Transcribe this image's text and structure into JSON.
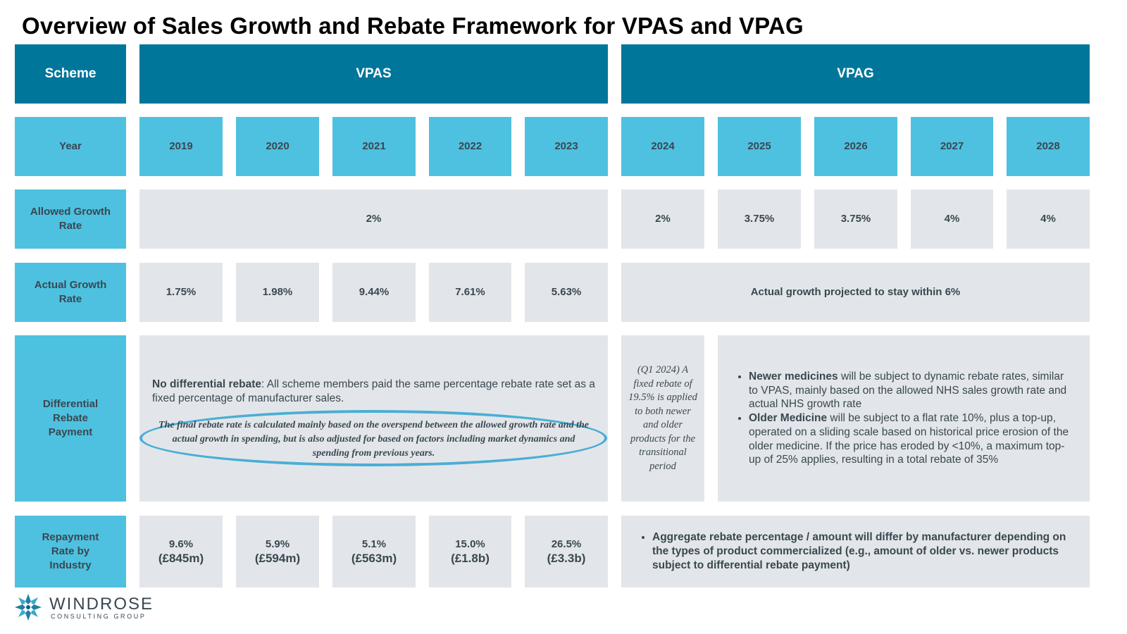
{
  "title": "Overview of Sales Growth and Rebate Framework for VPAS and VPAG",
  "header": {
    "scheme": "Scheme",
    "vpas": "VPAS",
    "vpag": "VPAG"
  },
  "rows": {
    "year": {
      "label": "Year",
      "values": [
        "2019",
        "2020",
        "2021",
        "2022",
        "2023",
        "2024",
        "2025",
        "2026",
        "2027",
        "2028"
      ]
    },
    "allowed_growth": {
      "label": "Allowed Growth Rate",
      "vpas": "2%",
      "vpag": [
        "2%",
        "3.75%",
        "3.75%",
        "4%",
        "4%"
      ]
    },
    "actual_growth": {
      "label": "Actual Growth Rate",
      "vpas": [
        "1.75%",
        "1.98%",
        "9.44%",
        "7.61%",
        "5.63%"
      ],
      "vpag": "Actual growth projected to stay within 6%"
    },
    "differential_rebate": {
      "label": "Differential Rebate Payment",
      "vpas_bold": "No differential rebate",
      "vpas_text": ": All scheme members paid the same percentage rebate rate set as a fixed percentage of manufacturer sales.",
      "vpas_highlight": "The final rebate rate is calculated mainly based on the overspend between the allowed growth rate and the actual growth in spending, but is also adjusted for based on factors including market dynamics and spending from previous years.",
      "q1_2024": "(Q1 2024) A fixed rebate of 19.5% is applied to both newer and older products for the transitional period",
      "bullets": [
        {
          "bold": "Newer medicines",
          "text": " will be subject to dynamic rebate rates, similar to VPAS, mainly based on the allowed NHS sales growth rate and actual NHS growth rate"
        },
        {
          "bold": "Older Medicine",
          "text": " will be subject to a flat rate 10%, plus a top-up, operated on a sliding scale based on historical price erosion of the older medicine. If the price has eroded by <10%, a maximum top-up of 25% applies, resulting in a total rebate of 35%"
        }
      ]
    },
    "repayment": {
      "label": "Repayment Rate by Industry",
      "vpas": [
        {
          "rate": "9.6%",
          "amount": "(£845m)"
        },
        {
          "rate": "5.9%",
          "amount": "(£594m)"
        },
        {
          "rate": "5.1%",
          "amount": "(£563m)"
        },
        {
          "rate": "15.0%",
          "amount": "(£1.8b)"
        },
        {
          "rate": "26.5%",
          "amount": "(£3.3b)"
        }
      ],
      "vpag_bullet": "Aggregate rebate percentage / amount will differ by manufacturer depending on the types of product commercialized (e.g., amount of older vs. newer products subject to differential rebate payment)"
    }
  },
  "logo": {
    "name": "WINDROSE",
    "sub": "CONSULTING GROUP"
  },
  "colors": {
    "header_dark": "#00769a",
    "header_light": "#4ec1e0",
    "cell_grey": "#e2e6ea",
    "highlight_oval": "#4aaed4"
  }
}
